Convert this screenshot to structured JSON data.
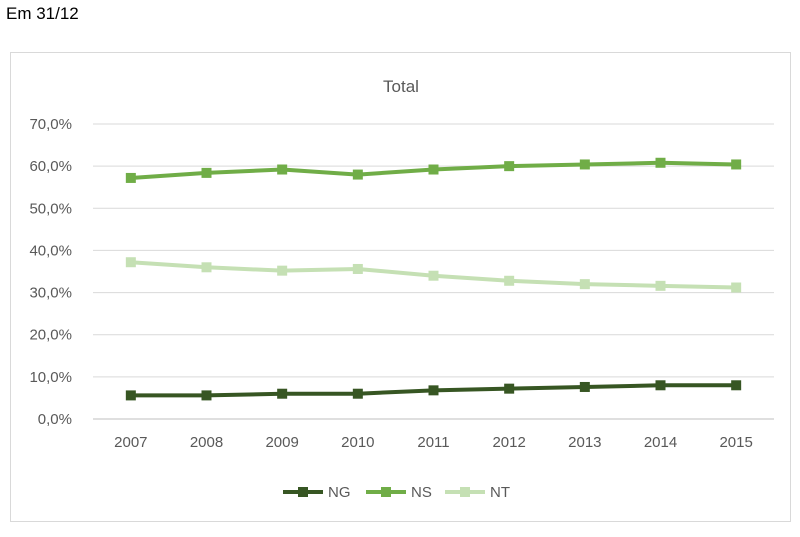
{
  "page": {
    "heading": "Em 31/12"
  },
  "chart_data": {
    "type": "line",
    "title": "Total",
    "xlabel": "",
    "ylabel": "",
    "x": [
      "2007",
      "2008",
      "2009",
      "2010",
      "2011",
      "2012",
      "2013",
      "2014",
      "2015"
    ],
    "ylim": [
      0,
      70
    ],
    "yticks": [
      "0,0%",
      "10,0%",
      "20,0%",
      "30,0%",
      "40,0%",
      "50,0%",
      "60,0%",
      "70,0%"
    ],
    "grid": true,
    "legend_position": "bottom",
    "series": [
      {
        "name": "NG",
        "color": "#375623",
        "values": [
          5.6,
          5.6,
          6.0,
          6.0,
          6.8,
          7.2,
          7.6,
          8.0,
          8.0
        ]
      },
      {
        "name": "NS",
        "color": "#70ad47",
        "values": [
          57.2,
          58.4,
          59.2,
          58.0,
          59.2,
          60.0,
          60.4,
          60.8,
          60.4
        ]
      },
      {
        "name": "NT",
        "color": "#c5e0b4",
        "values": [
          37.2,
          36.0,
          35.2,
          35.6,
          34.0,
          32.8,
          32.0,
          31.6,
          31.2
        ]
      }
    ]
  }
}
